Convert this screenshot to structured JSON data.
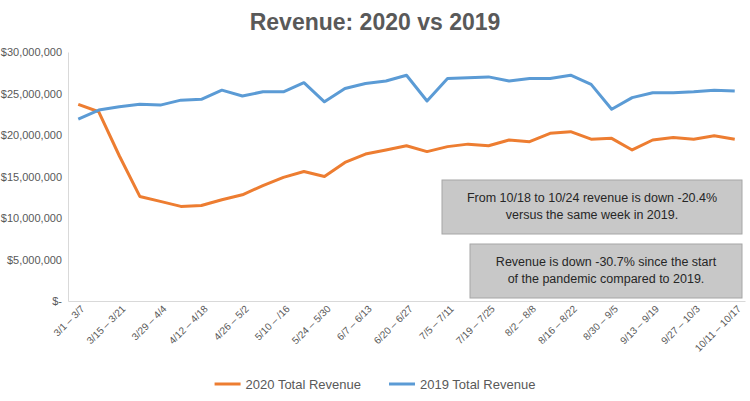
{
  "chart_data": {
    "type": "line",
    "title": "Revenue: 2020 vs 2019",
    "categories": [
      "3/1 – 3/7",
      null,
      "3/15 – 3/21",
      null,
      "3/29 – 4/4",
      null,
      "4/12 – 4/18",
      null,
      "4/26 – 5/2",
      null,
      "5/10 – /16",
      null,
      "5/24 – 5/30",
      null,
      "6/7 – 6/13",
      null,
      "6/20 – 6/27",
      null,
      "7/5 – 7/11",
      null,
      "7/19 – 7/25",
      null,
      "8/2 – 8/8",
      null,
      "8/16 – 8/22",
      null,
      "8/30 – 9/5",
      null,
      "9/13 – 9/19",
      null,
      "9/27 – 10/3",
      null,
      "10/11 – 10/17"
    ],
    "series": [
      {
        "name": "2020 Total Revenue",
        "color": "#ed7d31",
        "values": [
          23700000,
          22800000,
          17500000,
          12600000,
          12000000,
          11400000,
          11500000,
          12200000,
          12800000,
          13900000,
          14900000,
          15600000,
          15000000,
          16700000,
          17700000,
          18200000,
          18700000,
          18000000,
          18600000,
          18900000,
          18700000,
          19400000,
          19200000,
          20200000,
          20400000,
          19500000,
          19600000,
          18200000,
          19400000,
          19700000,
          19500000,
          19900000,
          19500000
        ]
      },
      {
        "name": "2019 Total Revenue",
        "color": "#5b9bd5",
        "values": [
          21900000,
          23000000,
          23400000,
          23700000,
          23600000,
          24200000,
          24300000,
          25400000,
          24700000,
          25200000,
          25200000,
          26300000,
          24000000,
          25600000,
          26200000,
          26500000,
          27200000,
          24100000,
          26800000,
          26900000,
          27000000,
          26500000,
          26800000,
          26800000,
          27200000,
          26100000,
          23100000,
          24500000,
          25100000,
          25100000,
          25200000,
          25400000,
          25300000
        ]
      }
    ],
    "ylim": [
      0,
      30000000
    ],
    "yticks": [
      {
        "value": 0,
        "label": "$-"
      },
      {
        "value": 5000000,
        "label": "$5,000,000"
      },
      {
        "value": 10000000,
        "label": "$10,000,000"
      },
      {
        "value": 15000000,
        "label": "$15,000,000"
      },
      {
        "value": 20000000,
        "label": "$20,000,000"
      },
      {
        "value": 25000000,
        "label": "$25,000,000"
      },
      {
        "value": 30000000,
        "label": "$30,000,000"
      }
    ],
    "grid": false,
    "legend": "bottom",
    "annotations": [
      [
        "From 10/18 to 10/24 revenue is down -20.4%",
        "versus the same week in 2019."
      ],
      [
        "Revenue is down -30.7% since the start",
        "of the pandemic compared to 2019."
      ]
    ]
  }
}
